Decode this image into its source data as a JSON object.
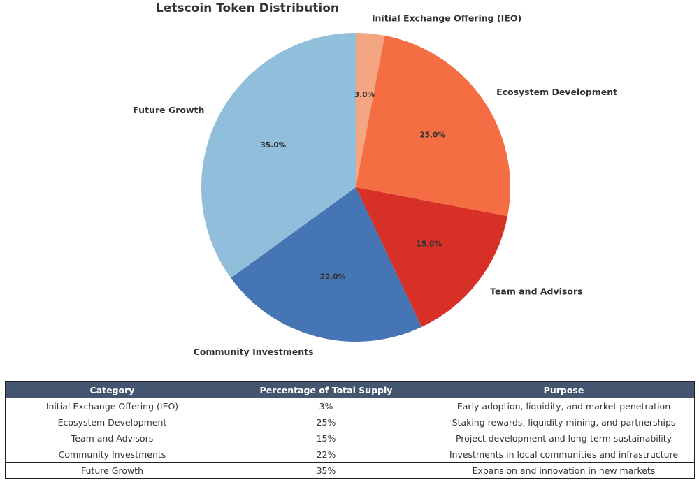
{
  "chart_data": {
    "type": "pie",
    "title": "Letscoin Token Distribution",
    "categories": [
      "Initial Exchange Offering (IEO)",
      "Ecosystem Development",
      "Team and Advisors",
      "Community Investments",
      "Future Growth"
    ],
    "values": [
      3,
      25,
      15,
      22,
      35
    ],
    "percent_labels": [
      "3.0%",
      "25.0%",
      "15.0%",
      "22.0%",
      "35.0%"
    ],
    "colors": [
      "#f4a582",
      "#f46d43",
      "#d73027",
      "#4575b4",
      "#91bfdb"
    ],
    "start_angle": "top",
    "direction": "clockwise"
  },
  "table": {
    "headers": [
      "Category",
      "Percentage of Total Supply",
      "Purpose"
    ],
    "rows": [
      [
        "Initial Exchange Offering (IEO)",
        "3%",
        "Early adoption, liquidity, and market penetration"
      ],
      [
        "Ecosystem Development",
        "25%",
        "Staking rewards, liquidity mining, and partnerships"
      ],
      [
        "Team and Advisors",
        "15%",
        "Project development and long-term sustainability"
      ],
      [
        "Community Investments",
        "22%",
        "Investments in local communities and infrastructure"
      ],
      [
        "Future Growth",
        "35%",
        "Expansion and innovation in new markets"
      ]
    ],
    "header_color": "#44566f"
  }
}
